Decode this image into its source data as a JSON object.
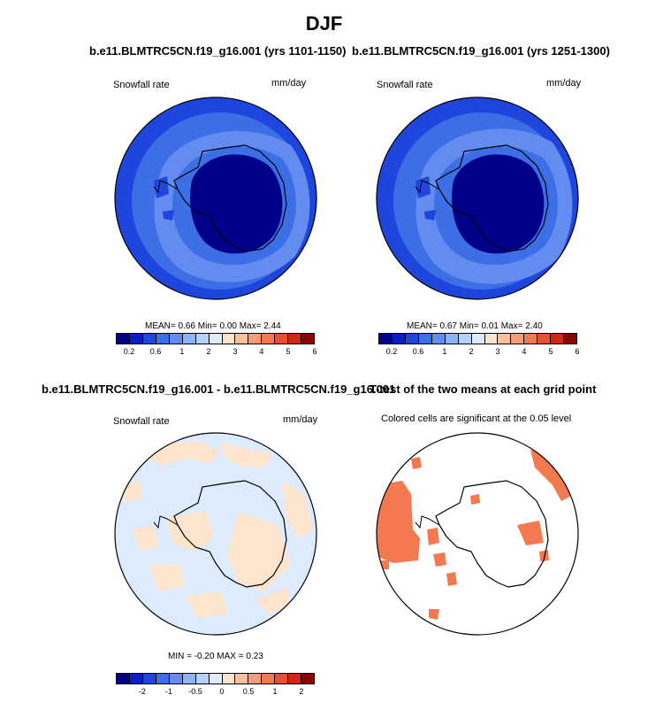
{
  "title": "DJF",
  "panel_top_left": {
    "title": "b.e11.BLMTRC5CN.f19_g16.001 (yrs 1101-1150)",
    "left_label": "Snowfall rate",
    "right_label": "mm/day",
    "stats": "MEAN=   0.66  Min=   0.00  Max=   2.44"
  },
  "panel_top_right": {
    "title": "b.e11.BLMTRC5CN.f19_g16.001 (yrs 1251-1300)",
    "left_label": "Snowfall rate",
    "right_label": "mm/day",
    "stats": "MEAN=   0.67  Min=   0.01  Max=   2.40"
  },
  "panel_bottom_left": {
    "title": "b.e11.BLMTRC5CN.f19_g16.001 - b.e11.BLMTRC5CN.f19_g16.001",
    "left_label": "Snowfall rate",
    "right_label": "mm/day",
    "stats": "MIN =  -0.20 MAX =   0.23"
  },
  "panel_bottom_right": {
    "title": "T-test of the two means at each grid point",
    "subtitle": "Colored cells are significant at the 0.05 level"
  },
  "colorbar_abs": {
    "colors": [
      "#00008b",
      "#0a1ec8",
      "#1e46dc",
      "#3c6ee6",
      "#648cf0",
      "#8cb4f8",
      "#b4d2fc",
      "#dcecfe",
      "#fde4cc",
      "#fcc09c",
      "#f89c78",
      "#f47850",
      "#e85030",
      "#d02814",
      "#8b0000"
    ],
    "ticks": [
      "0.2",
      "0.6",
      "1",
      "2",
      "3",
      "4",
      "5",
      "6"
    ]
  },
  "colorbar_diff": {
    "colors": [
      "#00008b",
      "#0a1ec8",
      "#1e46dc",
      "#3c6ee6",
      "#648cf0",
      "#8cb4f8",
      "#b4d2fc",
      "#dcecfe",
      "#fde4cc",
      "#fcc09c",
      "#f89c78",
      "#f47850",
      "#e85030",
      "#d02814",
      "#8b0000"
    ],
    "ticks": [
      "-2",
      "-1",
      "-0.5",
      "0",
      "0.5",
      "1",
      "2"
    ]
  },
  "colors": {
    "ocean_outer": "#1e46dc",
    "ocean_mid": "#3c6ee6",
    "ocean_light": "#648cf0",
    "ice_dark": "#00008b",
    "diff_neg": "#dcecfe",
    "diff_pos": "#fde4cc",
    "signif": "#f47850"
  }
}
